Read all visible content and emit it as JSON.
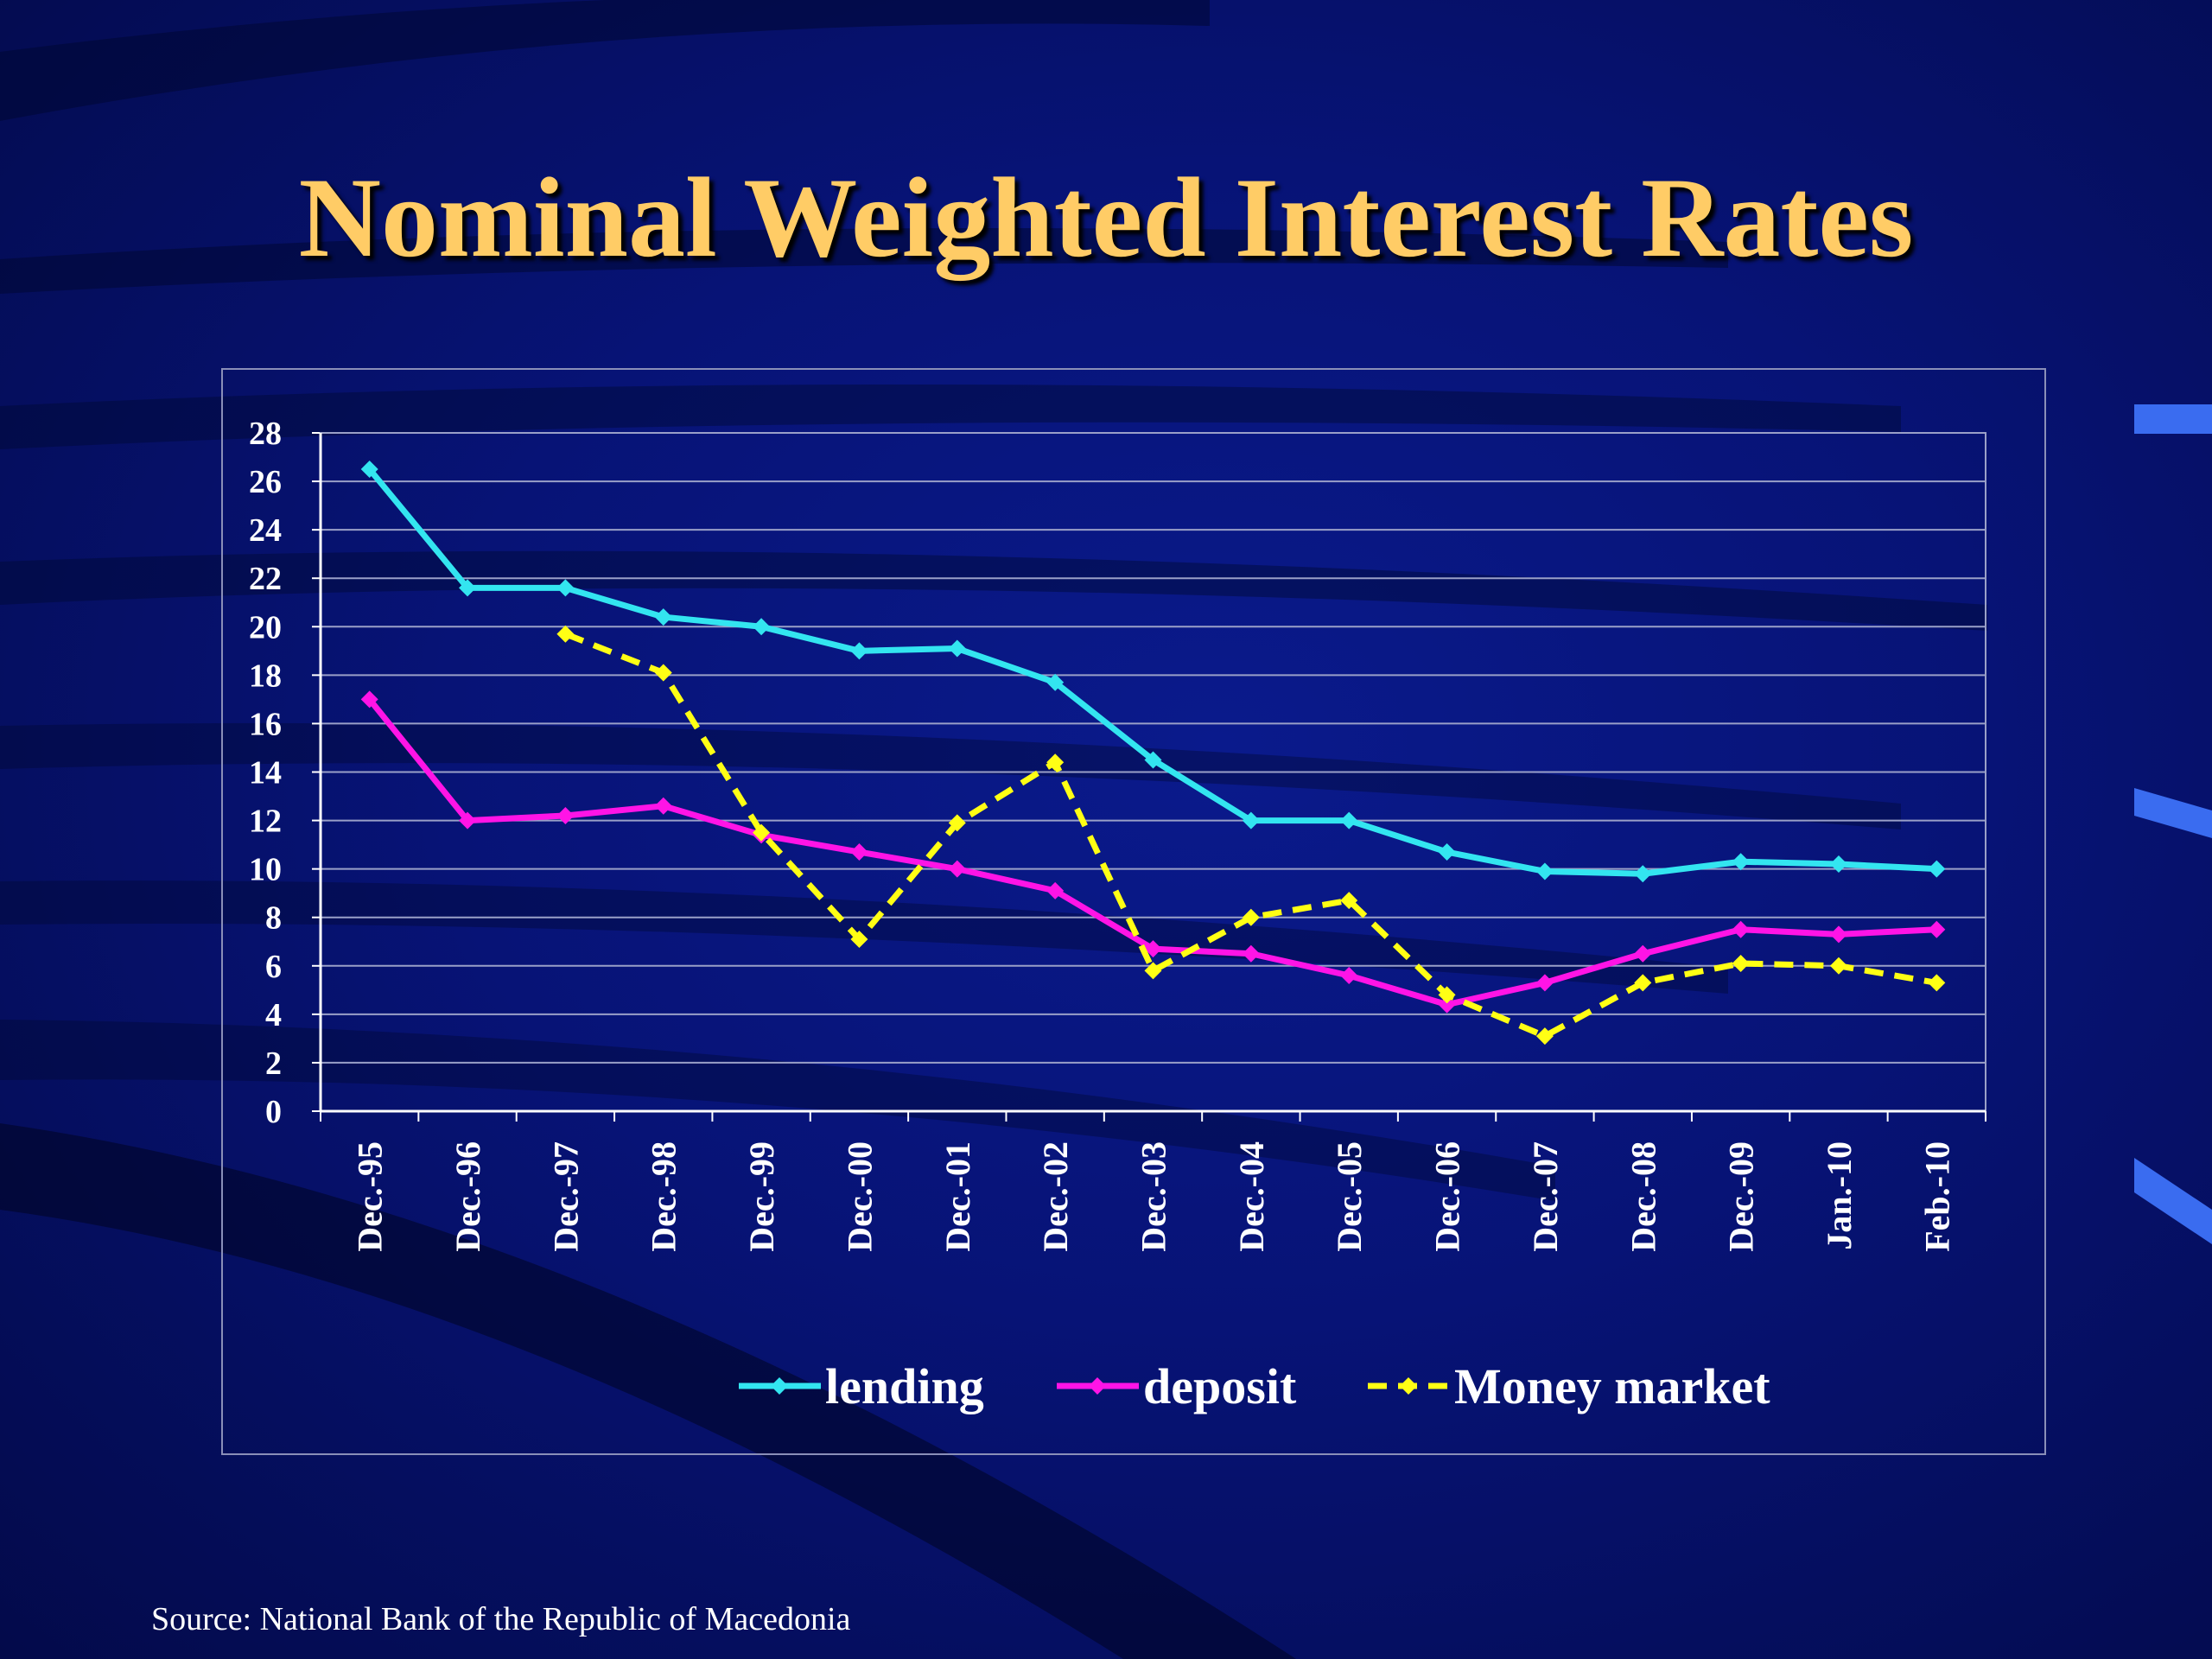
{
  "slide": {
    "title": "Nominal Weighted Interest Rates",
    "source": "Source: National Bank of the Republic of Macedonia"
  },
  "colors": {
    "title": "#ffcc66",
    "lending": "#33e5f0",
    "deposit": "#ff14e6",
    "money_market": "#ffff14",
    "grid": "#9aa0c8"
  },
  "chart_data": {
    "type": "line",
    "title": "",
    "xlabel": "",
    "ylabel": "",
    "ylim": [
      0,
      28
    ],
    "yticks": [
      0,
      2,
      4,
      6,
      8,
      10,
      12,
      14,
      16,
      18,
      20,
      22,
      24,
      26,
      28
    ],
    "grid": true,
    "legend_position": "bottom",
    "categories": [
      "Dec.-95",
      "Dec.-96",
      "Dec.-97",
      "Dec.-98",
      "Dec.-99",
      "Dec.-00",
      "Dec.-01",
      "Dec.-02",
      "Dec.-03",
      "Dec.-04",
      "Dec.-05",
      "Dec.-06",
      "Dec.-07",
      "Dec.-08",
      "Dec.-09",
      "Jan.-10",
      "Feb.-10"
    ],
    "series": [
      {
        "name": "lending",
        "color": "#33e5f0",
        "dashed": false,
        "values": [
          26.5,
          21.6,
          21.6,
          20.4,
          20.0,
          19.0,
          19.1,
          17.7,
          14.5,
          12.0,
          12.0,
          10.7,
          9.9,
          9.8,
          10.3,
          10.2,
          10.0
        ]
      },
      {
        "name": "deposit",
        "color": "#ff14e6",
        "dashed": false,
        "values": [
          17.0,
          12.0,
          12.2,
          12.6,
          11.4,
          10.7,
          10.0,
          9.1,
          6.7,
          6.5,
          5.6,
          4.4,
          5.3,
          6.5,
          7.5,
          7.3,
          7.5
        ]
      },
      {
        "name": "Money market",
        "color": "#ffff14",
        "dashed": true,
        "values": [
          null,
          null,
          19.7,
          18.1,
          11.5,
          7.1,
          11.9,
          14.4,
          5.8,
          8.0,
          8.7,
          4.8,
          3.1,
          5.3,
          6.1,
          6.0,
          5.3
        ]
      }
    ]
  }
}
